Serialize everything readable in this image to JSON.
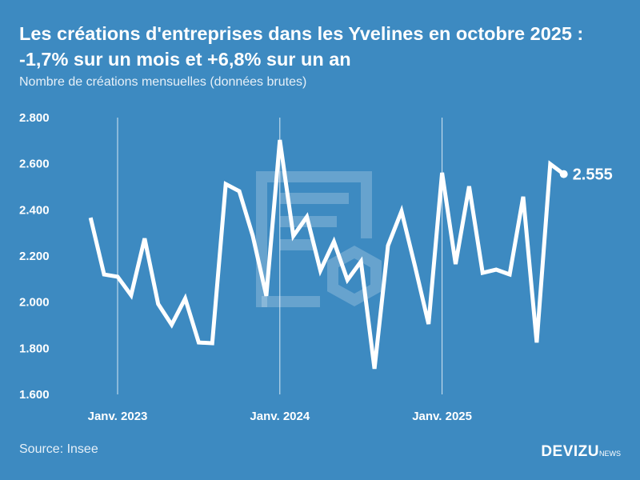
{
  "title": "Les créations d'entreprises dans les Yvelines en octobre 2025 : -1,7% sur un mois et +6,8% sur un an",
  "subtitle": "Nombre de créations mensuelles (données brutes)",
  "source": "Source: Insee",
  "logo": {
    "main": "DEVIZU",
    "suffix": "NEWS"
  },
  "colors": {
    "background": "#3d8ac1",
    "line": "#ffffff"
  },
  "chart_data": {
    "type": "line",
    "title": "Les créations d'entreprises dans les Yvelines en octobre 2025 : -1,7% sur un mois et +6,8% sur un an",
    "ylabel": "Nombre de créations mensuelles (données brutes)",
    "ylim": [
      1600,
      2800
    ],
    "yticks": [
      1600,
      1800,
      2000,
      2200,
      2400,
      2600,
      2800
    ],
    "ytick_labels": [
      "1.600",
      "1.800",
      "2.000",
      "2.200",
      "2.400",
      "2.600",
      "2.800"
    ],
    "xticks": [
      {
        "x": "2023-01",
        "label": "Janv. 2023"
      },
      {
        "x": "2024-01",
        "label": "Janv. 2024"
      },
      {
        "x": "2025-01",
        "label": "Janv. 2025"
      }
    ],
    "grid": "vertical lines at January",
    "x": [
      "2022-11",
      "2022-12",
      "2023-01",
      "2023-02",
      "2023-03",
      "2023-04",
      "2023-05",
      "2023-06",
      "2023-07",
      "2023-08",
      "2023-09",
      "2023-10",
      "2023-11",
      "2023-12",
      "2024-01",
      "2024-02",
      "2024-03",
      "2024-04",
      "2024-05",
      "2024-06",
      "2024-07",
      "2024-08",
      "2024-09",
      "2024-10",
      "2024-11",
      "2024-12",
      "2025-01",
      "2025-02",
      "2025-03",
      "2025-04",
      "2025-05",
      "2025-06",
      "2025-07",
      "2025-08",
      "2025-09",
      "2025-10"
    ],
    "values": [
      2366,
      2120,
      2110,
      2030,
      2276,
      1992,
      1902,
      2016,
      1825,
      1822,
      2512,
      2481,
      2287,
      2027,
      2703,
      2287,
      2370,
      2137,
      2262,
      2096,
      2176,
      1711,
      2245,
      2394,
      2155,
      1905,
      2561,
      2165,
      2502,
      2127,
      2141,
      2120,
      2457,
      1825,
      2599,
      2555
    ],
    "last_value_label": "2.555"
  }
}
